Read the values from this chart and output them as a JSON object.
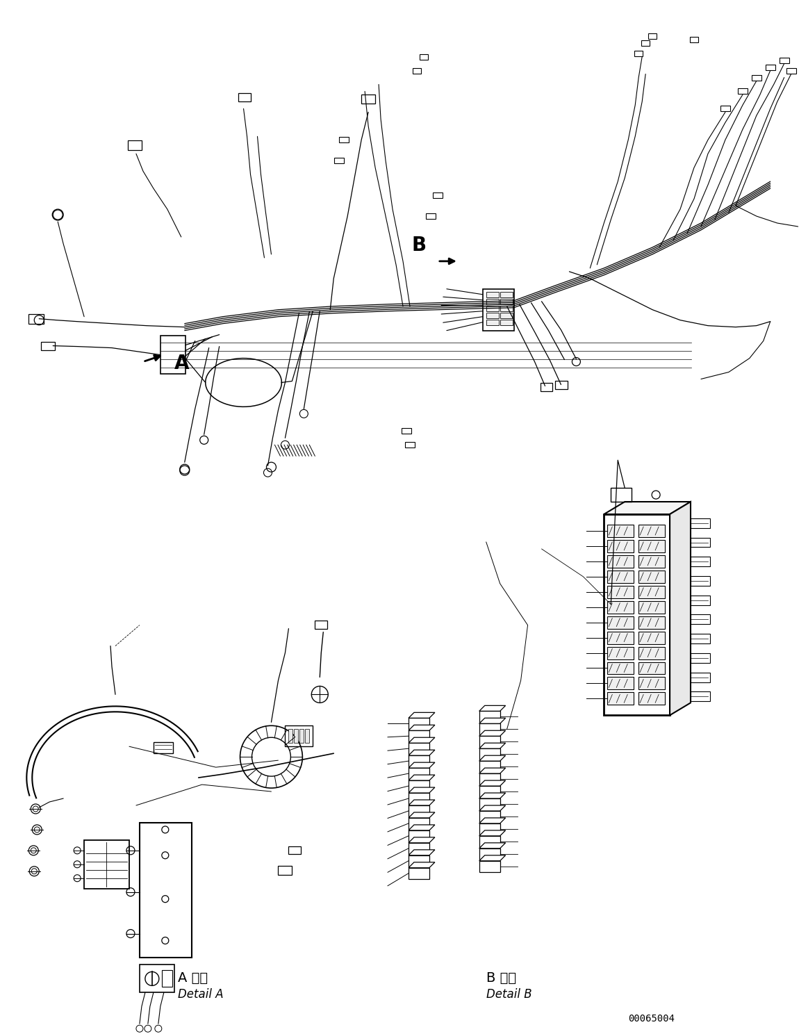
{
  "bg_color": "#ffffff",
  "line_color": "#000000",
  "fig_width": 11.63,
  "fig_height": 14.88,
  "dpi": 100,
  "part_number": "00065004",
  "label_A": "A",
  "label_B": "B",
  "detail_A_jp": "A 詳細",
  "detail_A_en": "Detail A",
  "detail_B_jp": "B 詳細",
  "detail_B_en": "Detail B"
}
